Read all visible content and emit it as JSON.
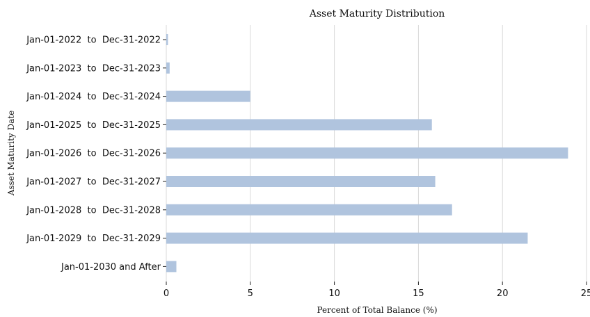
{
  "chart_data": {
    "type": "bar",
    "orientation": "horizontal",
    "title": "Asset Maturity Distribution",
    "xlabel": "Percent of Total Balance (%)",
    "ylabel": "Asset Maturity Date",
    "xlim": [
      0,
      25
    ],
    "xticks": [
      "0",
      "5",
      "10",
      "15",
      "20",
      "25"
    ],
    "grid": "vertical",
    "bar_color": "#b0c4de",
    "categories": [
      "Jan-01-2022  to  Dec-31-2022",
      "Jan-01-2023  to  Dec-31-2023",
      "Jan-01-2024  to  Dec-31-2024",
      "Jan-01-2025  to  Dec-31-2025",
      "Jan-01-2026  to  Dec-31-2026",
      "Jan-01-2027  to  Dec-31-2027",
      "Jan-01-2028  to  Dec-31-2028",
      "Jan-01-2029  to  Dec-31-2029",
      "Jan-01-2030 and After"
    ],
    "values": [
      0.1,
      0.2,
      5.0,
      15.8,
      23.9,
      16.0,
      17.0,
      21.5,
      0.6
    ]
  }
}
